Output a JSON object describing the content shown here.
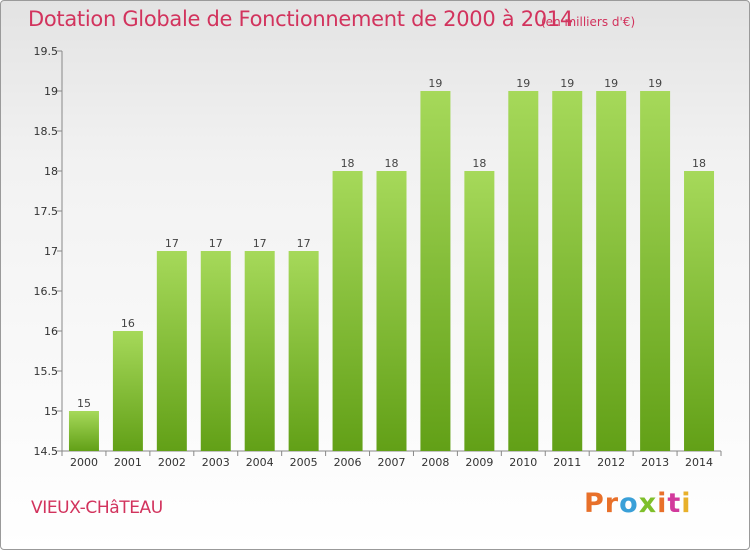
{
  "header": {
    "title": "Dotation Globale de Fonctionnement de 2000 à 2014",
    "subtitle": "(en milliers d'€)"
  },
  "footer": {
    "place": "VIEUX-CHâTEAU",
    "logo": [
      "P",
      "r",
      "o",
      "x",
      "i",
      "t",
      "i"
    ]
  },
  "colors": {
    "title": "#d2335d",
    "bar_top": "#a6d95a",
    "bar_bottom": "#62a017",
    "logo": [
      "#e8702a",
      "#e8702a",
      "#3aa0d8",
      "#7fbf2a",
      "#e8702a",
      "#d23a9c",
      "#e8b02a"
    ]
  },
  "chart_data": {
    "type": "bar",
    "title": "Dotation Globale de Fonctionnement de 2000 à 2014",
    "subtitle": "(en milliers d'€)",
    "xlabel": "",
    "ylabel": "",
    "categories": [
      "2000",
      "2001",
      "2002",
      "2003",
      "2004",
      "2005",
      "2006",
      "2007",
      "2008",
      "2009",
      "2010",
      "2011",
      "2012",
      "2013",
      "2014"
    ],
    "values": [
      15,
      16,
      17,
      17,
      17,
      17,
      18,
      18,
      19,
      18,
      19,
      19,
      19,
      19,
      18
    ],
    "data_labels": [
      "15",
      "16",
      "17",
      "17",
      "17",
      "17",
      "18",
      "18",
      "19",
      "18",
      "19",
      "19",
      "19",
      "19",
      "18"
    ],
    "ylim": [
      14.5,
      19.5
    ],
    "yticks": [
      14.5,
      15,
      15.5,
      16,
      16.5,
      17,
      17.5,
      18,
      18.5,
      19,
      19.5
    ],
    "ytick_labels": [
      "14.5",
      "15",
      "15.5",
      "16",
      "16.5",
      "17",
      "17.5",
      "18",
      "18.5",
      "19",
      "19.5"
    ],
    "grid": false
  }
}
